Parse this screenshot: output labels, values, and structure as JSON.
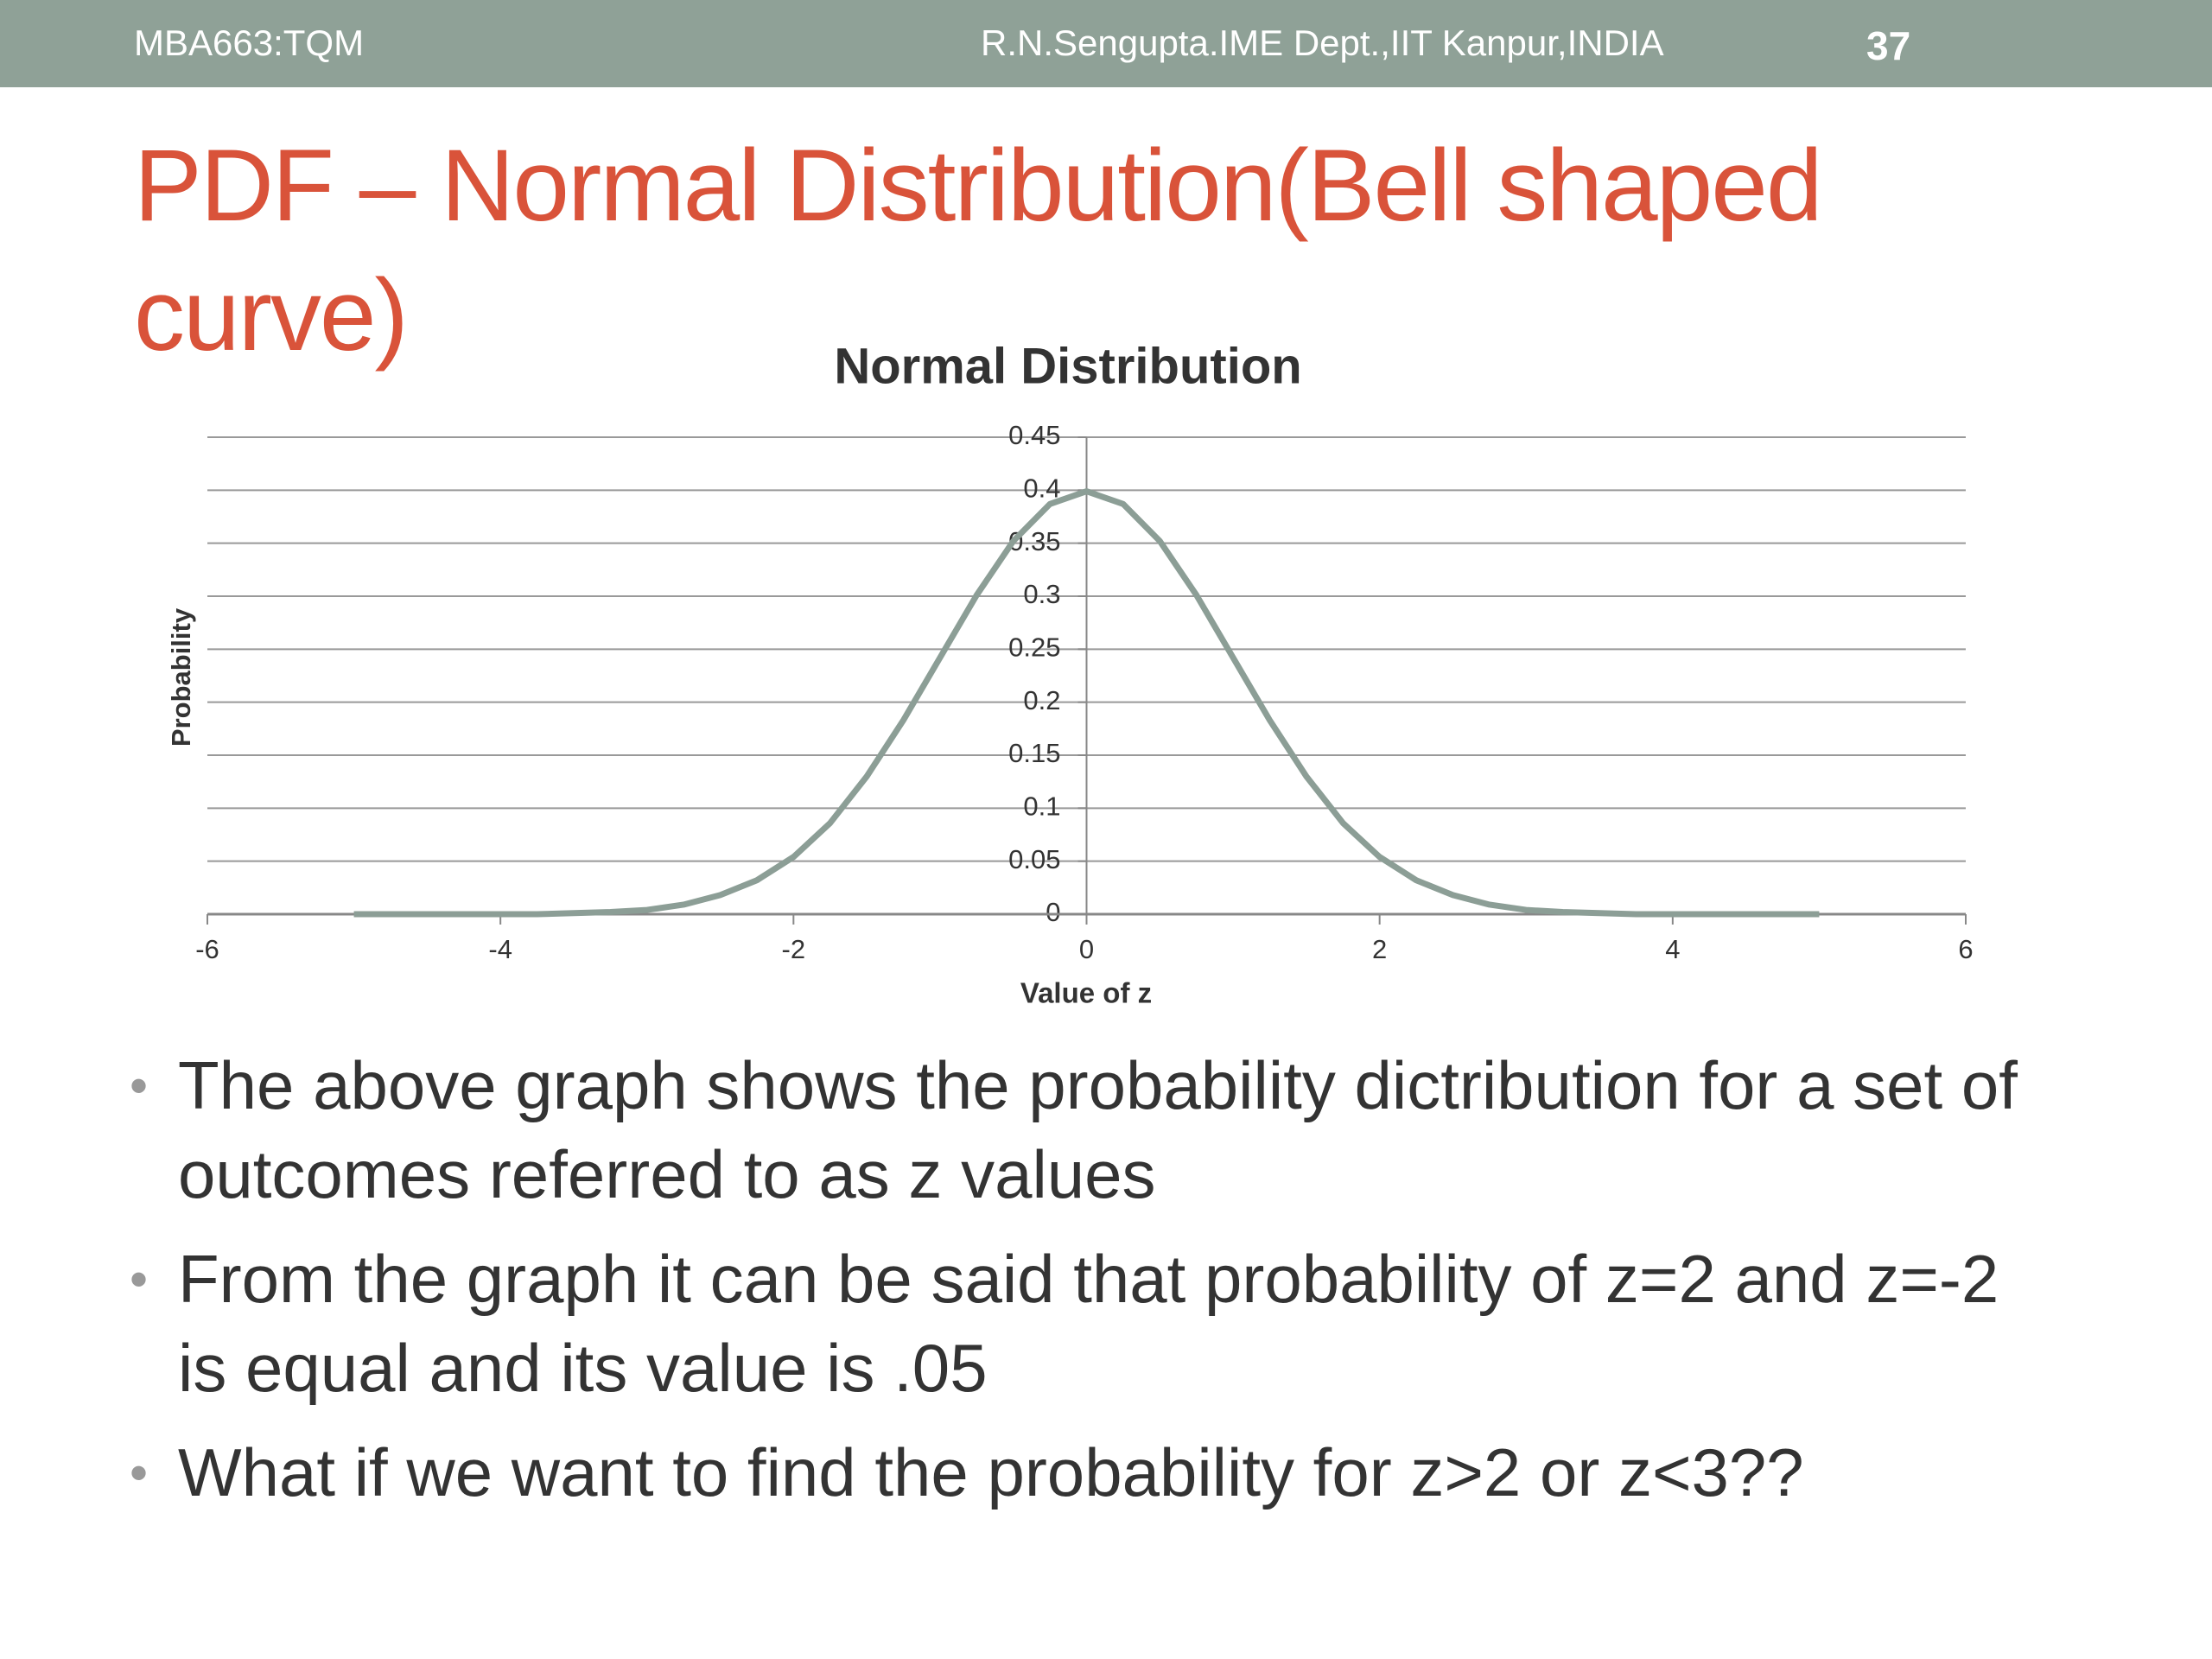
{
  "header": {
    "left": "MBA663:TQM",
    "center": "R.N.Sengupta.IME Dept.,IIT Kanpur,INDIA",
    "page": "37"
  },
  "title": "PDF – Normal Distribution(Bell shaped curve)",
  "chart_data": {
    "type": "line",
    "title": "Normal Distribution",
    "x_label": "Value of z",
    "y_label": "Probability",
    "x": [
      -5,
      -4.75,
      -4.5,
      -4.25,
      -4,
      -3.75,
      -3.5,
      -3.25,
      -3,
      -2.75,
      -2.5,
      -2.25,
      -2,
      -1.75,
      -1.5,
      -1.25,
      -1,
      -0.75,
      -0.5,
      -0.25,
      0,
      0.25,
      0.5,
      0.75,
      1,
      1.25,
      1.5,
      1.75,
      2,
      2.25,
      2.5,
      2.75,
      3,
      3.25,
      3.5,
      3.75,
      4,
      4.25,
      4.5,
      4.75,
      5
    ],
    "series": [
      {
        "name": "Probability",
        "color": "#8c9e96",
        "values": [
          0,
          0,
          0,
          0,
          0,
          0,
          0.001,
          0.002,
          0.004,
          0.009,
          0.018,
          0.032,
          0.054,
          0.086,
          0.13,
          0.183,
          0.242,
          0.301,
          0.352,
          0.387,
          0.399,
          0.387,
          0.352,
          0.301,
          0.242,
          0.183,
          0.13,
          0.086,
          0.054,
          0.032,
          0.018,
          0.009,
          0.004,
          0.002,
          0.001,
          0,
          0,
          0,
          0,
          0,
          0
        ]
      }
    ],
    "xlim": [
      -6,
      6
    ],
    "xticks": [
      -6,
      -4,
      -2,
      0,
      2,
      4,
      6
    ],
    "ylim": [
      0,
      0.45
    ],
    "yticks": [
      0,
      0.05,
      0.1,
      0.15,
      0.2,
      0.25,
      0.3,
      0.35,
      0.4,
      0.45
    ],
    "grid": true
  },
  "bullets": [
    "The above graph shows the probability dictribution for a set of outcomes referred to as z values",
    "From the graph it can be said that probability of z=2 and z=-2 is equal and its value is .05",
    "What if we want to find the probability for z>2 or z<3??"
  ]
}
